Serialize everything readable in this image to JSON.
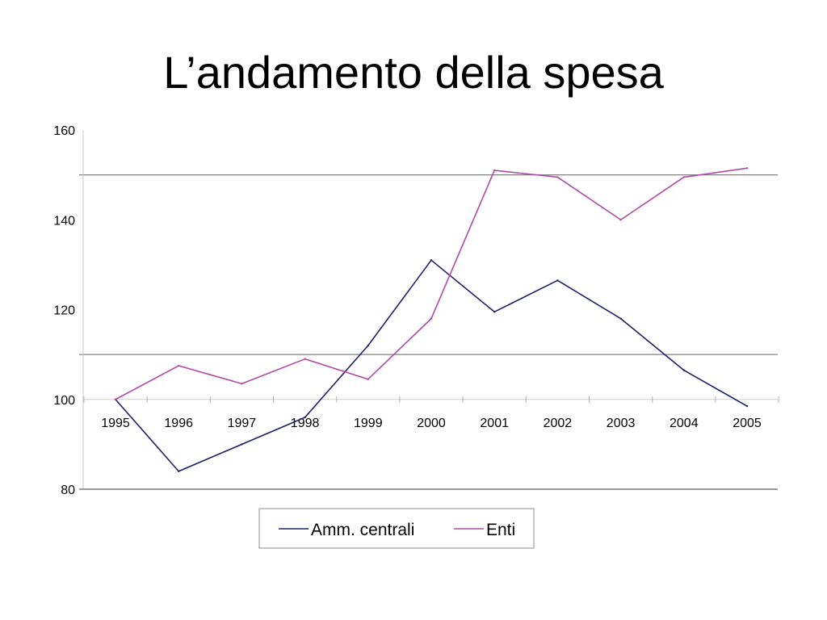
{
  "slide": {
    "title": "L’andamento della spesa"
  },
  "chart_data": {
    "type": "line",
    "title": "",
    "xlabel": "",
    "ylabel": "",
    "x": [
      "1995",
      "1996",
      "1997",
      "1998",
      "1999",
      "2000",
      "2001",
      "2002",
      "2003",
      "2004",
      "2005"
    ],
    "ylim": [
      80,
      160
    ],
    "yticks": [
      "80",
      "100",
      "120",
      "140",
      "160"
    ],
    "gridlines_y": [
      110,
      150
    ],
    "series": [
      {
        "name": "Amm. centrali",
        "color": "#1F1F6B",
        "values": [
          100,
          84,
          90,
          96,
          112,
          131,
          119.5,
          126.5,
          118,
          106.5,
          98.5
        ]
      },
      {
        "name": "Enti",
        "color": "#B04AA8",
        "values": [
          100,
          107.5,
          103.5,
          109,
          104.5,
          118,
          151,
          149.5,
          140,
          149.5,
          151.5
        ]
      }
    ],
    "legend_position": "bottom-center"
  }
}
